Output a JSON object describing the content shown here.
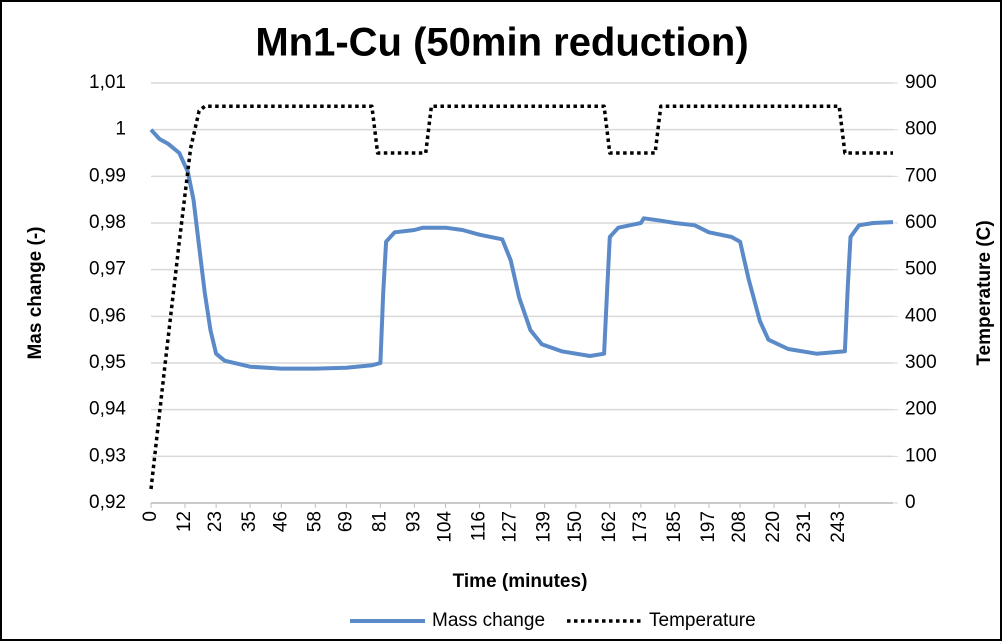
{
  "chart_data": {
    "type": "line",
    "title": "Mn1-Cu (50min reduction)",
    "x_label": "Time (minutes)",
    "y_label": "Mas change (-)",
    "y2_label": "Temperature (C)",
    "xlim": [
      0,
      262
    ],
    "xticks": [
      0,
      12,
      23,
      35,
      46,
      58,
      69,
      81,
      93,
      104,
      116,
      127,
      139,
      150,
      162,
      173,
      185,
      197,
      208,
      220,
      231,
      243
    ],
    "ylim": [
      0.92,
      1.01
    ],
    "yticks": [
      {
        "value": 0.92,
        "label": "0,92"
      },
      {
        "value": 0.93,
        "label": "0,93"
      },
      {
        "value": 0.94,
        "label": "0,94"
      },
      {
        "value": 0.95,
        "label": "0,95"
      },
      {
        "value": 0.96,
        "label": "0,96"
      },
      {
        "value": 0.97,
        "label": "0,97"
      },
      {
        "value": 0.98,
        "label": "0,98"
      },
      {
        "value": 0.99,
        "label": "0,99"
      },
      1,
      {
        "value": 1.01,
        "label": "1,01"
      }
    ],
    "y2lim": [
      0,
      900
    ],
    "y2ticks": [
      0,
      100,
      200,
      300,
      400,
      500,
      600,
      700,
      800,
      900
    ],
    "grid": true,
    "legend": "bottom",
    "series": [
      {
        "name": "Mass change",
        "color": "#5b8ac8",
        "style": "solid",
        "x": [
          0,
          3,
          6,
          10,
          13,
          15,
          17,
          19,
          21,
          23,
          26,
          35,
          46,
          58,
          69,
          78,
          81,
          82,
          83,
          86,
          93,
          96,
          104,
          110,
          116,
          124,
          127,
          130,
          134,
          138,
          145,
          155,
          160,
          161,
          162,
          165,
          173,
          174,
          180,
          185,
          192,
          197,
          205,
          208,
          211,
          215,
          218,
          225,
          235,
          245,
          246,
          247,
          250,
          255,
          262
        ],
        "values": [
          1.0,
          0.998,
          0.997,
          0.995,
          0.991,
          0.985,
          0.975,
          0.965,
          0.957,
          0.952,
          0.9505,
          0.9492,
          0.9488,
          0.9488,
          0.949,
          0.9495,
          0.95,
          0.965,
          0.976,
          0.978,
          0.9785,
          0.979,
          0.979,
          0.9785,
          0.9775,
          0.9765,
          0.972,
          0.964,
          0.957,
          0.954,
          0.9525,
          0.9515,
          0.952,
          0.965,
          0.977,
          0.979,
          0.98,
          0.981,
          0.9805,
          0.98,
          0.9795,
          0.978,
          0.977,
          0.976,
          0.968,
          0.959,
          0.955,
          0.953,
          0.952,
          0.9525,
          0.966,
          0.977,
          0.9795,
          0.98,
          0.9802
        ]
      },
      {
        "name": "Temperature",
        "color": "#000000",
        "style": "dotted",
        "axis": "y2",
        "x": [
          0,
          5,
          10,
          14,
          17,
          19,
          78,
          80,
          97,
          99,
          160,
          162,
          178,
          180,
          243,
          245,
          262
        ],
        "values": [
          30,
          300,
          560,
          760,
          840,
          850,
          850,
          750,
          750,
          850,
          850,
          750,
          750,
          850,
          850,
          750,
          750
        ]
      }
    ]
  }
}
